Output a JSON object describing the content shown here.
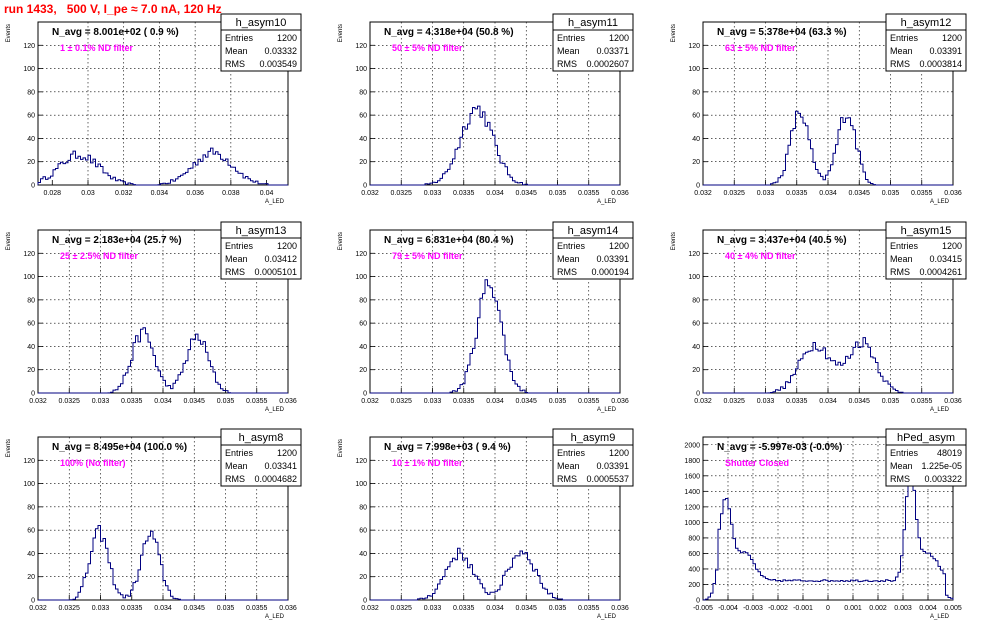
{
  "page_title": "run 1433,   500 V, I_pe ≈ 7.0 nA, 120 Hz",
  "stat_labels": {
    "entries": "Entries",
    "mean": "Mean",
    "rms": "RMS"
  },
  "colors": {
    "histogram": "#000080",
    "annotation": "#ff00ff",
    "title": "#ff0000"
  },
  "chart_data": [
    {
      "type": "bar",
      "name": "h_asym10",
      "summary": "N_avg = 8.001e+02 ( 0.9 %)",
      "filter": "1 ± 0.1% ND filter",
      "stats": {
        "entries": "1200",
        "mean": "0.03332",
        "rms": "0.003549"
      },
      "xlabel": "A_LED",
      "ylabel": "Events",
      "xlim": [
        0.0272,
        0.0412
      ],
      "ylim": [
        0,
        140
      ],
      "xticks": [
        "0.028",
        "0.03",
        "0.032",
        "0.034",
        "0.036",
        "0.038",
        "0.04"
      ],
      "xtick_values": [
        0.028,
        0.03,
        0.032,
        0.034,
        0.036,
        0.038,
        0.04
      ],
      "yticks": [
        "0",
        "20",
        "40",
        "60",
        "80",
        "100",
        "120"
      ],
      "peaks": [
        {
          "mu": 0.0295,
          "sigma": 0.0011,
          "amp": 26
        },
        {
          "mu": 0.037,
          "sigma": 0.0011,
          "amp": 28
        }
      ]
    },
    {
      "type": "bar",
      "name": "h_asym11",
      "summary": "N_avg = 4.318e+04 (50.8 %)",
      "filter": "50 ± 5% ND filter",
      "stats": {
        "entries": "1200",
        "mean": "0.03371",
        "rms": "0.0002607"
      },
      "xlabel": "A_LED",
      "ylabel": "Events",
      "xlim": [
        0.032,
        0.036
      ],
      "ylim": [
        0,
        140
      ],
      "xticks": [
        "0.032",
        "0.0325",
        "0.033",
        "0.0335",
        "0.034",
        "0.0345",
        "0.035",
        "0.0355",
        "0.036"
      ],
      "xtick_values": [
        0.032,
        0.0325,
        0.033,
        0.0335,
        0.034,
        0.0345,
        0.035,
        0.0355,
        0.036
      ],
      "yticks": [
        "0",
        "20",
        "40",
        "60",
        "80",
        "100",
        "120"
      ],
      "peaks": [
        {
          "mu": 0.03371,
          "sigma": 0.00026,
          "amp": 66
        }
      ]
    },
    {
      "type": "bar",
      "name": "h_asym12",
      "summary": "N_avg = 5.378e+04 (63.3 %)",
      "filter": "63 ± 5% ND filter",
      "stats": {
        "entries": "1200",
        "mean": "0.03391",
        "rms": "0.0003814"
      },
      "xlabel": "A_LED",
      "ylabel": "Events",
      "xlim": [
        0.032,
        0.036
      ],
      "ylim": [
        0,
        140
      ],
      "xticks": [
        "0.032",
        "0.0325",
        "0.033",
        "0.0335",
        "0.034",
        "0.0345",
        "0.035",
        "0.0355",
        "0.036"
      ],
      "xtick_values": [
        0.032,
        0.0325,
        0.033,
        0.0335,
        0.034,
        0.0345,
        0.035,
        0.0355,
        0.036
      ],
      "yticks": [
        "0",
        "20",
        "40",
        "60",
        "80",
        "100",
        "120"
      ],
      "peaks": [
        {
          "mu": 0.03355,
          "sigma": 0.00015,
          "amp": 62
        },
        {
          "mu": 0.0343,
          "sigma": 0.00015,
          "amp": 62
        }
      ]
    },
    {
      "type": "bar",
      "name": "h_asym13",
      "summary": "N_avg = 2.183e+04 (25.7 %)",
      "filter": "25 ± 2.5% ND filter",
      "stats": {
        "entries": "1200",
        "mean": "0.03412",
        "rms": "0.0005101"
      },
      "xlabel": "A_LED",
      "ylabel": "Events",
      "xlim": [
        0.032,
        0.036
      ],
      "ylim": [
        0,
        140
      ],
      "xticks": [
        "0.032",
        "0.0325",
        "0.033",
        "0.0335",
        "0.034",
        "0.0345",
        "0.035",
        "0.0355",
        "0.036"
      ],
      "xtick_values": [
        0.032,
        0.0325,
        0.033,
        0.0335,
        0.034,
        0.0345,
        0.035,
        0.0355,
        0.036
      ],
      "yticks": [
        "0",
        "20",
        "40",
        "60",
        "80",
        "100",
        "120"
      ],
      "peaks": [
        {
          "mu": 0.03368,
          "sigma": 0.00018,
          "amp": 52
        },
        {
          "mu": 0.03455,
          "sigma": 0.00018,
          "amp": 48
        }
      ]
    },
    {
      "type": "bar",
      "name": "h_asym14",
      "summary": "N_avg = 6.831e+04 (80.4 %)",
      "filter": "79 ± 5% ND filter",
      "stats": {
        "entries": "1200",
        "mean": "0.03391",
        "rms": "0.000194"
      },
      "xlabel": "A_LED",
      "ylabel": "Events",
      "xlim": [
        0.032,
        0.036
      ],
      "ylim": [
        0,
        140
      ],
      "xticks": [
        "0.032",
        "0.0325",
        "0.033",
        "0.0335",
        "0.034",
        "0.0345",
        "0.035",
        "0.0355",
        "0.036"
      ],
      "xtick_values": [
        0.032,
        0.0325,
        0.033,
        0.0335,
        0.034,
        0.0345,
        0.035,
        0.0355,
        0.036
      ],
      "yticks": [
        "0",
        "20",
        "40",
        "60",
        "80",
        "100",
        "120"
      ],
      "peaks": [
        {
          "mu": 0.03391,
          "sigma": 0.000194,
          "amp": 95
        }
      ]
    },
    {
      "type": "bar",
      "name": "h_asym15",
      "summary": "N_avg = 3.437e+04 (40.5 %)",
      "filter": "40 ± 4% ND filter",
      "stats": {
        "entries": "1200",
        "mean": "0.03415",
        "rms": "0.0004261"
      },
      "xlabel": "A_LED",
      "ylabel": "Events",
      "xlim": [
        0.032,
        0.036
      ],
      "ylim": [
        0,
        140
      ],
      "xticks": [
        "0.032",
        "0.0325",
        "0.033",
        "0.0335",
        "0.034",
        "0.0345",
        "0.035",
        "0.0355",
        "0.036"
      ],
      "xtick_values": [
        0.032,
        0.0325,
        0.033,
        0.0335,
        0.034,
        0.0345,
        0.035,
        0.0355,
        0.036
      ],
      "yticks": [
        "0",
        "20",
        "40",
        "60",
        "80",
        "100",
        "120"
      ],
      "peaks": [
        {
          "mu": 0.0338,
          "sigma": 0.00025,
          "amp": 42
        },
        {
          "mu": 0.03455,
          "sigma": 0.00022,
          "amp": 44
        }
      ]
    },
    {
      "type": "bar",
      "name": "h_asym8",
      "summary": "N_avg = 8.495e+04 (100.0 %)",
      "filter": "100% (No filter)",
      "stats": {
        "entries": "1200",
        "mean": "0.03341",
        "rms": "0.0004682"
      },
      "xlabel": "A_LED",
      "ylabel": "Events",
      "xlim": [
        0.032,
        0.036
      ],
      "ylim": [
        0,
        140
      ],
      "xticks": [
        "0.032",
        "0.0325",
        "0.033",
        "0.0335",
        "0.034",
        "0.0345",
        "0.035",
        "0.0355",
        "0.036"
      ],
      "xtick_values": [
        0.032,
        0.0325,
        0.033,
        0.0335,
        0.034,
        0.0345,
        0.035,
        0.0355,
        0.036
      ],
      "yticks": [
        "0",
        "20",
        "40",
        "60",
        "80",
        "100",
        "120"
      ],
      "peaks": [
        {
          "mu": 0.03298,
          "sigma": 0.00015,
          "amp": 58
        },
        {
          "mu": 0.0338,
          "sigma": 0.00015,
          "amp": 56
        }
      ]
    },
    {
      "type": "bar",
      "name": "h_asym9",
      "summary": "N_avg = 7.998e+03 ( 9.4 %)",
      "filter": "10 ± 1% ND filter",
      "stats": {
        "entries": "1200",
        "mean": "0.03391",
        "rms": "0.0005537"
      },
      "xlabel": "A_LED",
      "ylabel": "Events",
      "xlim": [
        0.032,
        0.036
      ],
      "ylim": [
        0,
        140
      ],
      "xticks": [
        "0.032",
        "0.0325",
        "0.033",
        "0.0335",
        "0.034",
        "0.0345",
        "0.035",
        "0.0355",
        "0.036"
      ],
      "xtick_values": [
        0.032,
        0.0325,
        0.033,
        0.0335,
        0.034,
        0.0345,
        0.035,
        0.0355,
        0.036
      ],
      "yticks": [
        "0",
        "20",
        "40",
        "60",
        "80",
        "100",
        "120"
      ],
      "peaks": [
        {
          "mu": 0.03343,
          "sigma": 0.00022,
          "amp": 40
        },
        {
          "mu": 0.03443,
          "sigma": 0.00022,
          "amp": 42
        }
      ]
    },
    {
      "type": "bar",
      "name": "hPed_asym",
      "summary": "N_avg = -5.997e-03 (-0.0%)",
      "filter": "Shutter Closed",
      "stats": {
        "entries": "48019",
        "mean": "1.225e-05",
        "rms": "0.003322"
      },
      "xlabel": "A_LED",
      "ylabel": "",
      "xlim": [
        -0.005,
        0.005
      ],
      "ylim": [
        0,
        2100
      ],
      "xticks": [
        "-0.005",
        "-0.004",
        "-0.003",
        "-0.002",
        "-0.001",
        "0",
        "0.001",
        "0.002",
        "0.003",
        "0.004",
        "0.005"
      ],
      "xtick_values": [
        -0.005,
        -0.004,
        -0.003,
        -0.002,
        -0.001,
        0,
        0.001,
        0.002,
        0.003,
        0.004,
        0.005
      ],
      "yticks": [
        "0",
        "200",
        "400",
        "600",
        "800",
        "1000",
        "1200",
        "1400",
        "1600",
        "1800",
        "2000"
      ],
      "baseline": 250,
      "peaks": [
        {
          "mu": -0.0041,
          "sigma": 0.00025,
          "amp": 1050
        },
        {
          "mu": -0.0033,
          "sigma": 0.00035,
          "amp": 350
        },
        {
          "mu": 0.0033,
          "sigma": 0.0002,
          "amp": 1350
        },
        {
          "mu": 0.004,
          "sigma": 0.0004,
          "amp": 350
        }
      ]
    }
  ]
}
